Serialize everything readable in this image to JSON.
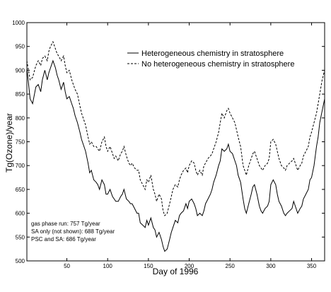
{
  "chart_data": {
    "type": "line",
    "title": "",
    "xlabel": "Day of 1996",
    "ylabel": "Tg(Ozone)/year",
    "xlim": [
      1,
      366
    ],
    "ylim": [
      500,
      1000
    ],
    "xticks": [
      50,
      100,
      150,
      200,
      250,
      300,
      350
    ],
    "yticks": [
      500,
      550,
      600,
      650,
      700,
      750,
      800,
      850,
      900,
      950,
      1000
    ],
    "grid": false,
    "legend_position": "top-right",
    "colors": {
      "axis": "#000000",
      "series": "#000000"
    },
    "series": [
      {
        "name": "Heterogeneous chemistry in stratosphere",
        "style": "solid",
        "x": [
          1,
          5,
          8,
          12,
          15,
          18,
          20,
          23,
          26,
          28,
          30,
          33,
          36,
          38,
          40,
          43,
          46,
          48,
          50,
          53,
          56,
          58,
          60,
          63,
          66,
          68,
          70,
          73,
          76,
          78,
          80,
          83,
          86,
          88,
          90,
          93,
          96,
          98,
          100,
          103,
          106,
          108,
          110,
          113,
          116,
          118,
          120,
          123,
          126,
          128,
          130,
          133,
          136,
          138,
          140,
          143,
          146,
          148,
          150,
          153,
          156,
          158,
          160,
          163,
          166,
          168,
          170,
          173,
          176,
          178,
          180,
          183,
          186,
          188,
          190,
          193,
          196,
          198,
          200,
          203,
          206,
          208,
          210,
          213,
          216,
          218,
          220,
          223,
          226,
          228,
          230,
          233,
          236,
          238,
          240,
          243,
          246,
          248,
          250,
          253,
          256,
          258,
          260,
          263,
          266,
          268,
          270,
          273,
          276,
          278,
          280,
          283,
          286,
          288,
          290,
          293,
          296,
          298,
          300,
          303,
          306,
          308,
          310,
          313,
          316,
          318,
          320,
          323,
          326,
          328,
          330,
          333,
          336,
          338,
          340,
          343,
          346,
          348,
          350,
          353,
          356,
          358,
          360,
          363,
          366
        ],
        "y": [
          905,
          840,
          830,
          865,
          870,
          855,
          880,
          900,
          880,
          895,
          905,
          920,
          905,
          890,
          880,
          860,
          875,
          855,
          840,
          845,
          830,
          820,
          805,
          790,
          770,
          755,
          745,
          730,
          705,
          685,
          690,
          670,
          665,
          660,
          650,
          670,
          660,
          640,
          640,
          650,
          635,
          630,
          625,
          625,
          635,
          640,
          650,
          630,
          625,
          620,
          620,
          610,
          600,
          600,
          580,
          575,
          570,
          585,
          575,
          590,
          570,
          565,
          550,
          560,
          545,
          530,
          520,
          525,
          545,
          560,
          570,
          585,
          580,
          595,
          600,
          605,
          620,
          610,
          625,
          630,
          620,
          610,
          595,
          600,
          595,
          605,
          620,
          630,
          640,
          650,
          665,
          680,
          700,
          710,
          735,
          730,
          735,
          745,
          730,
          725,
          710,
          700,
          680,
          665,
          630,
          610,
          600,
          620,
          640,
          655,
          660,
          640,
          615,
          605,
          600,
          610,
          615,
          625,
          660,
          670,
          660,
          640,
          625,
          615,
          600,
          595,
          600,
          605,
          610,
          625,
          615,
          600,
          610,
          615,
          630,
          640,
          650,
          670,
          675,
          700,
          740,
          760,
          790,
          815,
          840
        ]
      },
      {
        "name": "No heterogeneous chemistry in stratosphere",
        "style": "dashed",
        "x": [
          1,
          5,
          8,
          12,
          15,
          18,
          20,
          23,
          26,
          28,
          30,
          33,
          36,
          38,
          40,
          43,
          46,
          48,
          50,
          53,
          56,
          58,
          60,
          63,
          66,
          68,
          70,
          73,
          76,
          78,
          80,
          83,
          86,
          88,
          90,
          93,
          96,
          98,
          100,
          103,
          106,
          108,
          110,
          113,
          116,
          118,
          120,
          123,
          126,
          128,
          130,
          133,
          136,
          138,
          140,
          143,
          146,
          148,
          150,
          153,
          156,
          158,
          160,
          163,
          166,
          168,
          170,
          173,
          176,
          178,
          180,
          183,
          186,
          188,
          190,
          193,
          196,
          198,
          200,
          203,
          206,
          208,
          210,
          213,
          216,
          218,
          220,
          223,
          226,
          228,
          230,
          233,
          236,
          238,
          240,
          243,
          246,
          248,
          250,
          253,
          256,
          258,
          260,
          263,
          266,
          268,
          270,
          273,
          276,
          278,
          280,
          283,
          286,
          288,
          290,
          293,
          296,
          298,
          300,
          303,
          306,
          308,
          310,
          313,
          316,
          318,
          320,
          323,
          326,
          328,
          330,
          333,
          336,
          338,
          340,
          343,
          346,
          348,
          350,
          353,
          356,
          358,
          360,
          363,
          366
        ],
        "y": [
          920,
          880,
          885,
          910,
          920,
          910,
          925,
          930,
          920,
          940,
          950,
          960,
          945,
          935,
          930,
          920,
          930,
          910,
          895,
          900,
          880,
          870,
          860,
          850,
          825,
          810,
          800,
          785,
          760,
          745,
          750,
          740,
          740,
          735,
          730,
          750,
          760,
          740,
          730,
          740,
          725,
          715,
          720,
          710,
          725,
          730,
          740,
          720,
          705,
          700,
          705,
          695,
          690,
          690,
          670,
          660,
          650,
          670,
          665,
          680,
          650,
          640,
          625,
          640,
          630,
          605,
          595,
          600,
          620,
          635,
          650,
          660,
          655,
          670,
          680,
          690,
          695,
          685,
          700,
          710,
          705,
          690,
          680,
          690,
          680,
          700,
          705,
          715,
          720,
          725,
          735,
          750,
          770,
          790,
          810,
          800,
          815,
          820,
          810,
          800,
          790,
          775,
          760,
          740,
          700,
          690,
          680,
          700,
          715,
          725,
          730,
          715,
          700,
          695,
          690,
          700,
          705,
          715,
          750,
          755,
          745,
          730,
          715,
          700,
          695,
          690,
          700,
          705,
          710,
          715,
          705,
          690,
          700,
          705,
          720,
          730,
          740,
          760,
          770,
          790,
          810,
          830,
          850,
          880,
          900
        ]
      }
    ],
    "annotations": [
      "gas phase run: 757 Tg/year",
      "SA only (not shown): 688 Tg/year",
      "PSC and SA: 686 Tg/year"
    ]
  }
}
